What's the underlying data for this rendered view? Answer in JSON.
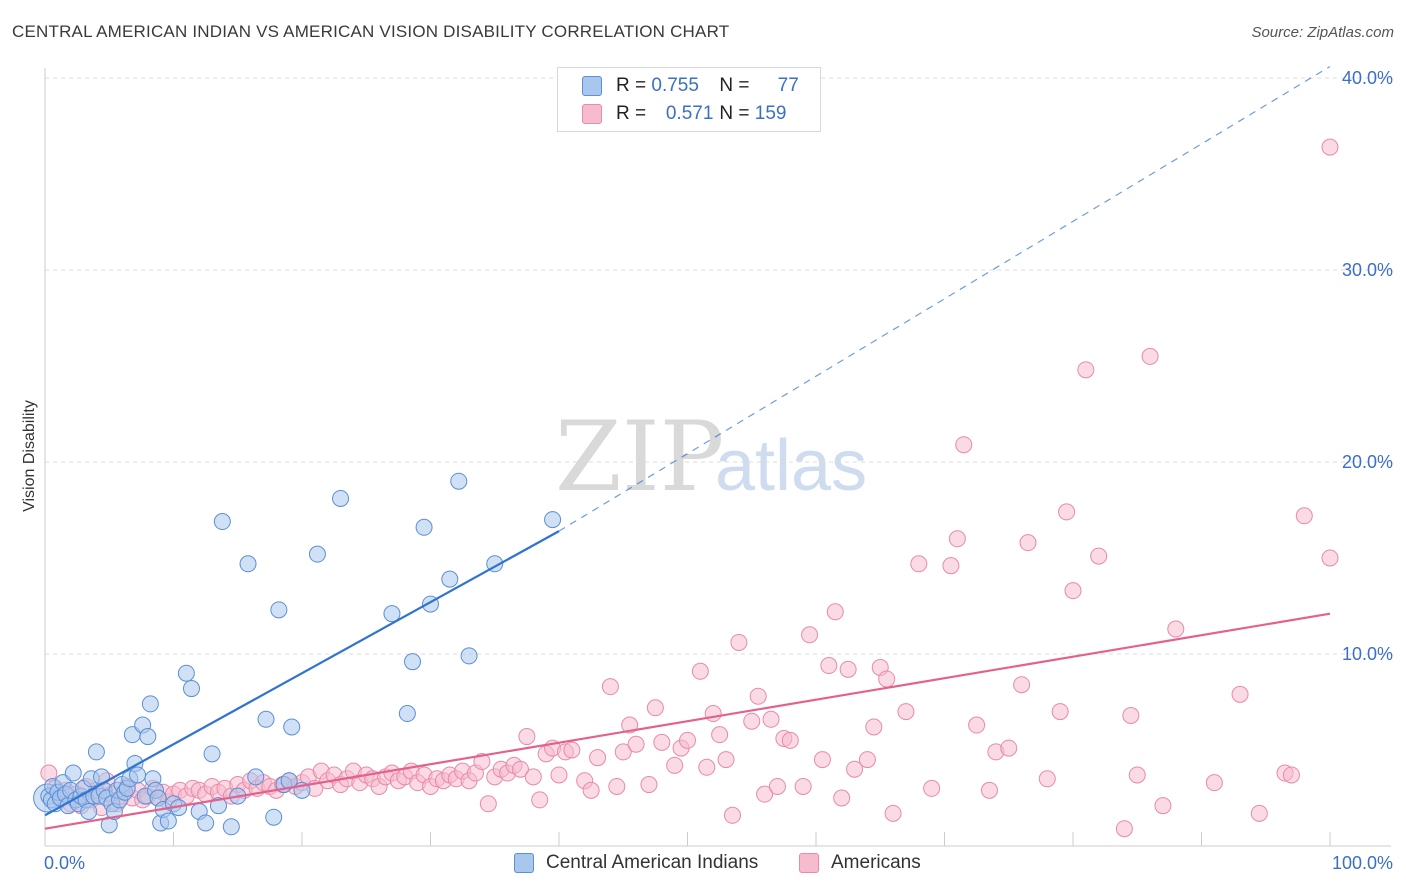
{
  "title": "CENTRAL AMERICAN INDIAN VS AMERICAN VISION DISABILITY CORRELATION CHART",
  "source": "Source: ZipAtlas.com",
  "watermark": {
    "zip": "ZIP",
    "atlas": "atlas"
  },
  "legend": {
    "rows": [
      {
        "r_label": "R =",
        "r_value": "0.755",
        "n_label": "N =",
        "n_value": "77"
      },
      {
        "r_label": "R =",
        "r_value": "0.571",
        "n_label": "N =",
        "n_value": "159"
      }
    ]
  },
  "bottom_legend": [
    "Central American Indians",
    "Americans"
  ],
  "colors": {
    "blue_fill": "#a9c6ec",
    "blue_stroke": "#5b8fd6",
    "blue_line": "#2f74d0",
    "pink_fill": "#f6bccd",
    "pink_stroke": "#e98aa8",
    "pink_line": "#e4618d",
    "grid": "#dddddd",
    "tick_text": "#3a6fc8"
  },
  "chart_data": {
    "type": "scatter",
    "title": "CENTRAL AMERICAN INDIAN VS AMERICAN VISION DISABILITY CORRELATION CHART",
    "xlabel": "",
    "ylabel": "Vision Disability",
    "xlim": [
      0,
      100
    ],
    "ylim": [
      0,
      41
    ],
    "x_tick_labels": [
      "0.0%",
      "100.0%"
    ],
    "y_ticks": [
      10,
      20,
      30,
      40
    ],
    "y_tick_labels": [
      "10.0%",
      "20.0%",
      "30.0%",
      "40.0%"
    ],
    "grid": true,
    "legend_position": "top-center",
    "series": [
      {
        "name": "Central American Indians",
        "r": 0.755,
        "n": 77,
        "trend": {
          "x0": 0,
          "y0": 1.6,
          "x1": 40,
          "y1": 16.4,
          "dashed_to_x": 100,
          "dashed_to_y": 40.6
        },
        "points": [
          [
            0.3,
            2.6
          ],
          [
            0.5,
            2.4
          ],
          [
            0.6,
            3.1
          ],
          [
            0.8,
            2.2
          ],
          [
            1.0,
            2.8
          ],
          [
            1.2,
            2.5
          ],
          [
            1.4,
            3.3
          ],
          [
            1.6,
            2.7
          ],
          [
            1.8,
            2.1
          ],
          [
            2.0,
            2.9
          ],
          [
            2.2,
            3.8
          ],
          [
            2.4,
            2.4
          ],
          [
            2.6,
            2.2
          ],
          [
            2.8,
            2.6
          ],
          [
            3.0,
            3.0
          ],
          [
            3.2,
            2.4
          ],
          [
            3.4,
            1.8
          ],
          [
            3.6,
            3.5
          ],
          [
            3.8,
            2.6
          ],
          [
            4.0,
            4.9
          ],
          [
            4.2,
            2.6
          ],
          [
            4.4,
            3.6
          ],
          [
            4.6,
            2.9
          ],
          [
            4.8,
            2.5
          ],
          [
            5.0,
            1.1
          ],
          [
            5.2,
            2.2
          ],
          [
            5.4,
            1.8
          ],
          [
            5.6,
            2.9
          ],
          [
            5.8,
            2.4
          ],
          [
            6.0,
            3.2
          ],
          [
            6.2,
            2.8
          ],
          [
            6.4,
            3.0
          ],
          [
            6.6,
            3.5
          ],
          [
            6.8,
            5.8
          ],
          [
            7.0,
            4.3
          ],
          [
            7.2,
            3.7
          ],
          [
            7.6,
            6.3
          ],
          [
            7.8,
            2.6
          ],
          [
            8.0,
            5.7
          ],
          [
            8.2,
            7.4
          ],
          [
            8.4,
            3.5
          ],
          [
            8.6,
            2.9
          ],
          [
            8.8,
            2.5
          ],
          [
            9.0,
            1.2
          ],
          [
            9.2,
            1.9
          ],
          [
            9.6,
            1.3
          ],
          [
            10.0,
            2.2
          ],
          [
            10.4,
            2.0
          ],
          [
            11.0,
            9.0
          ],
          [
            11.4,
            8.2
          ],
          [
            12.0,
            1.8
          ],
          [
            12.5,
            1.2
          ],
          [
            13.0,
            4.8
          ],
          [
            13.5,
            2.1
          ],
          [
            14.5,
            1.0
          ],
          [
            13.8,
            16.9
          ],
          [
            15.0,
            2.6
          ],
          [
            15.8,
            14.7
          ],
          [
            16.4,
            3.6
          ],
          [
            17.2,
            6.6
          ],
          [
            17.8,
            1.5
          ],
          [
            18.2,
            12.3
          ],
          [
            18.6,
            3.2
          ],
          [
            19.0,
            3.4
          ],
          [
            19.2,
            6.2
          ],
          [
            20.0,
            2.9
          ],
          [
            21.2,
            15.2
          ],
          [
            23.0,
            18.1
          ],
          [
            27.0,
            12.1
          ],
          [
            28.2,
            6.9
          ],
          [
            28.6,
            9.6
          ],
          [
            29.5,
            16.6
          ],
          [
            30.0,
            12.6
          ],
          [
            31.5,
            13.9
          ],
          [
            32.2,
            19.0
          ],
          [
            33.0,
            9.9
          ],
          [
            35.0,
            14.7
          ],
          [
            39.5,
            17.0
          ]
        ]
      },
      {
        "name": "Americans",
        "r": 0.571,
        "n": 159,
        "trend": {
          "x0": 0,
          "y0": 0.9,
          "x1": 100,
          "y1": 12.1
        },
        "points": [
          [
            0.3,
            3.8
          ],
          [
            0.8,
            3.0
          ],
          [
            1.2,
            2.5
          ],
          [
            1.6,
            2.9
          ],
          [
            2.0,
            2.2
          ],
          [
            2.4,
            2.7
          ],
          [
            2.8,
            2.1
          ],
          [
            3.2,
            3.1
          ],
          [
            3.6,
            2.4
          ],
          [
            4.0,
            2.9
          ],
          [
            4.4,
            2.0
          ],
          [
            4.8,
            3.4
          ],
          [
            5.2,
            2.7
          ],
          [
            5.6,
            2.2
          ],
          [
            6.0,
            2.6
          ],
          [
            6.4,
            3.1
          ],
          [
            6.8,
            2.5
          ],
          [
            7.2,
            2.9
          ],
          [
            7.6,
            2.4
          ],
          [
            8.0,
            2.6
          ],
          [
            8.4,
            3.0
          ],
          [
            8.8,
            2.5
          ],
          [
            9.2,
            2.8
          ],
          [
            9.6,
            2.3
          ],
          [
            10.0,
            2.7
          ],
          [
            10.5,
            2.9
          ],
          [
            11.0,
            2.6
          ],
          [
            11.5,
            3.0
          ],
          [
            12.0,
            2.9
          ],
          [
            12.5,
            2.7
          ],
          [
            13.0,
            3.1
          ],
          [
            13.5,
            2.8
          ],
          [
            14.0,
            3.0
          ],
          [
            14.5,
            2.6
          ],
          [
            15.0,
            3.2
          ],
          [
            15.5,
            2.9
          ],
          [
            16.0,
            3.4
          ],
          [
            16.5,
            3.0
          ],
          [
            17.0,
            3.3
          ],
          [
            17.5,
            3.1
          ],
          [
            18.0,
            2.9
          ],
          [
            18.5,
            3.2
          ],
          [
            19.0,
            3.4
          ],
          [
            19.5,
            3.1
          ],
          [
            20.0,
            3.3
          ],
          [
            20.5,
            3.6
          ],
          [
            21.0,
            3.0
          ],
          [
            21.5,
            3.9
          ],
          [
            22.0,
            3.4
          ],
          [
            22.5,
            3.7
          ],
          [
            23.0,
            3.2
          ],
          [
            23.5,
            3.5
          ],
          [
            24.0,
            3.9
          ],
          [
            24.5,
            3.3
          ],
          [
            25.0,
            3.7
          ],
          [
            25.5,
            3.5
          ],
          [
            26.0,
            3.1
          ],
          [
            26.5,
            3.6
          ],
          [
            27.0,
            3.8
          ],
          [
            27.5,
            3.4
          ],
          [
            28.0,
            3.6
          ],
          [
            28.5,
            3.9
          ],
          [
            29.0,
            3.3
          ],
          [
            29.5,
            3.7
          ],
          [
            30.0,
            3.1
          ],
          [
            30.5,
            3.5
          ],
          [
            31.0,
            3.4
          ],
          [
            31.5,
            3.7
          ],
          [
            32.0,
            3.5
          ],
          [
            32.5,
            3.9
          ],
          [
            33.0,
            3.4
          ],
          [
            33.5,
            3.8
          ],
          [
            34.0,
            4.4
          ],
          [
            34.5,
            2.2
          ],
          [
            35.0,
            3.6
          ],
          [
            35.5,
            4.0
          ],
          [
            36.0,
            3.8
          ],
          [
            36.5,
            4.2
          ],
          [
            37.0,
            4.0
          ],
          [
            37.5,
            5.7
          ],
          [
            38.0,
            3.6
          ],
          [
            38.5,
            2.4
          ],
          [
            39.0,
            4.8
          ],
          [
            39.5,
            5.1
          ],
          [
            40.0,
            3.7
          ],
          [
            40.5,
            4.9
          ],
          [
            41.0,
            5.0
          ],
          [
            42.0,
            3.4
          ],
          [
            42.5,
            2.9
          ],
          [
            43.0,
            4.6
          ],
          [
            44.0,
            8.3
          ],
          [
            44.5,
            3.1
          ],
          [
            45.0,
            4.9
          ],
          [
            45.5,
            6.3
          ],
          [
            46.0,
            5.3
          ],
          [
            47.0,
            3.2
          ],
          [
            47.5,
            7.2
          ],
          [
            48.0,
            5.4
          ],
          [
            49.0,
            4.2
          ],
          [
            49.5,
            5.1
          ],
          [
            50.0,
            5.5
          ],
          [
            51.0,
            9.1
          ],
          [
            51.5,
            4.1
          ],
          [
            52.0,
            6.9
          ],
          [
            52.5,
            5.8
          ],
          [
            53.0,
            4.5
          ],
          [
            53.5,
            1.6
          ],
          [
            54.0,
            10.6
          ],
          [
            55.0,
            6.5
          ],
          [
            55.5,
            7.8
          ],
          [
            56.0,
            2.7
          ],
          [
            56.5,
            6.6
          ],
          [
            57.0,
            3.1
          ],
          [
            57.5,
            5.6
          ],
          [
            58.0,
            5.5
          ],
          [
            59.0,
            3.1
          ],
          [
            59.5,
            11.0
          ],
          [
            60.5,
            4.5
          ],
          [
            61.0,
            9.4
          ],
          [
            61.5,
            12.2
          ],
          [
            62.0,
            2.5
          ],
          [
            62.5,
            9.2
          ],
          [
            63.0,
            4.0
          ],
          [
            64.0,
            4.5
          ],
          [
            64.5,
            6.2
          ],
          [
            65.0,
            9.3
          ],
          [
            65.5,
            8.7
          ],
          [
            66.0,
            1.7
          ],
          [
            67.0,
            7.0
          ],
          [
            68.0,
            14.7
          ],
          [
            69.0,
            3.0
          ],
          [
            70.5,
            14.6
          ],
          [
            71.0,
            16.0
          ],
          [
            71.5,
            20.9
          ],
          [
            72.5,
            6.3
          ],
          [
            73.5,
            2.9
          ],
          [
            74.0,
            4.9
          ],
          [
            75.0,
            5.1
          ],
          [
            76.0,
            8.4
          ],
          [
            76.5,
            15.8
          ],
          [
            78.0,
            3.5
          ],
          [
            79.0,
            7.0
          ],
          [
            79.5,
            17.4
          ],
          [
            80.0,
            13.3
          ],
          [
            81.0,
            24.8
          ],
          [
            82.0,
            15.1
          ],
          [
            84.0,
            0.9
          ],
          [
            84.5,
            6.8
          ],
          [
            85.0,
            3.7
          ],
          [
            86.0,
            25.5
          ],
          [
            87.0,
            2.1
          ],
          [
            88.0,
            11.3
          ],
          [
            91.0,
            3.3
          ],
          [
            93.0,
            7.9
          ],
          [
            94.5,
            1.7
          ],
          [
            96.5,
            3.8
          ],
          [
            97.0,
            3.7
          ],
          [
            98.0,
            17.2
          ],
          [
            100.0,
            15.0
          ],
          [
            100.0,
            36.4
          ]
        ]
      }
    ]
  }
}
